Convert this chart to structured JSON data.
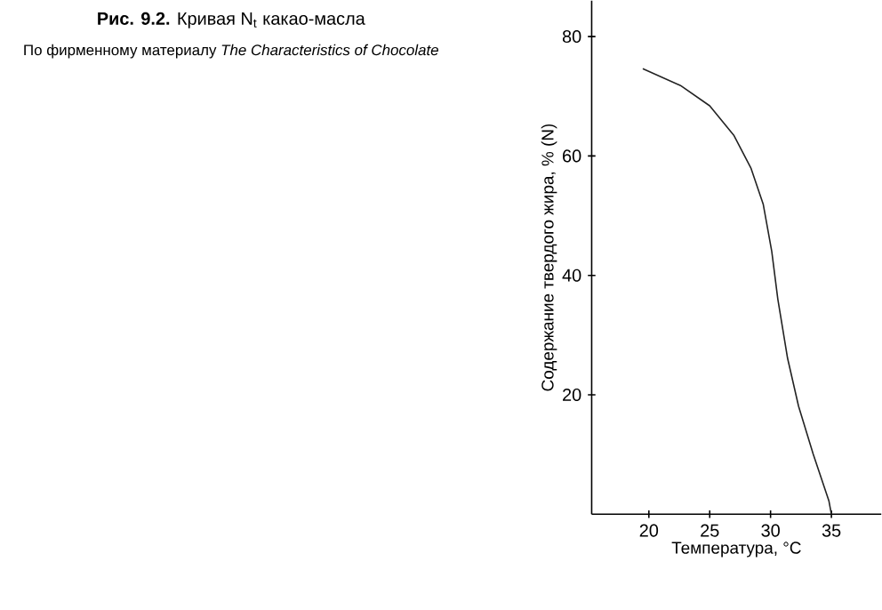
{
  "chart_data": {
    "type": "line",
    "title": "**Рис. 9.2.** Кривая N$_{t}$ какао-масла",
    "annotations": [
      "По фирменному материалу *The Characteristics of Chocolate*"
    ],
    "xlabel": "Температура, °С",
    "ylabel": "Содержание твердого жира, % (N)",
    "x": [
      19.5,
      22.6,
      25.0,
      27.0,
      28.4,
      29.4,
      30.1,
      30.6,
      31.4,
      32.3,
      33.5,
      34.8,
      35.0
    ],
    "values": [
      74.6,
      71.8,
      68.4,
      63.4,
      57.9,
      51.9,
      44.0,
      36.0,
      26.1,
      18.1,
      10.1,
      2.2,
      0
    ],
    "color": "#222222",
    "xlim": [
      15.3,
      39.1
    ],
    "ylim": [
      0,
      86
    ],
    "xticks": [
      20,
      25,
      30,
      35
    ],
    "yticks": [
      20,
      40,
      60,
      80
    ],
    "grid": false,
    "marker": "none",
    "line_style": "solid"
  }
}
